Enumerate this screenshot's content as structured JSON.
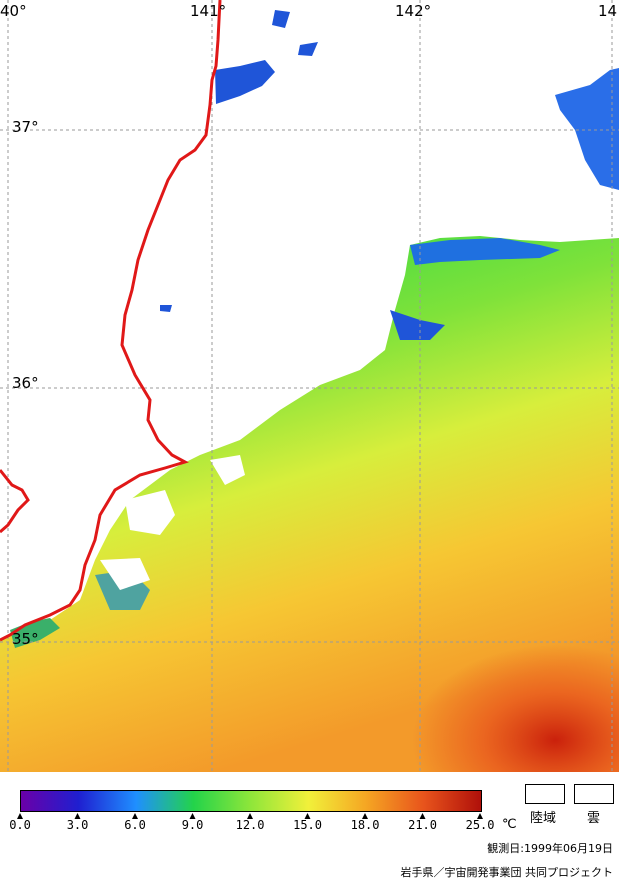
{
  "map": {
    "lon_labels": [
      "40°",
      "141°",
      "142°",
      "14"
    ],
    "lat_labels": [
      "37°",
      "36°",
      "35°"
    ]
  },
  "colorbar": {
    "ticks": [
      "0.0",
      "3.0",
      "6.0",
      "9.0",
      "12.0",
      "15.0",
      "18.0",
      "21.0",
      "25.0"
    ],
    "unit": "℃",
    "colors": [
      "#6a00a8",
      "#1f1fd0",
      "#1f8fff",
      "#23d34a",
      "#8fe63a",
      "#f1f03a",
      "#f5a623",
      "#e8541c",
      "#b0100a"
    ]
  },
  "legend": {
    "land_label": "陸域",
    "cloud_label": "雲"
  },
  "footer": {
    "date": "観測日:1999年06月19日",
    "credit": "岩手県／宇宙開発事業団 共同プロジェクト"
  }
}
